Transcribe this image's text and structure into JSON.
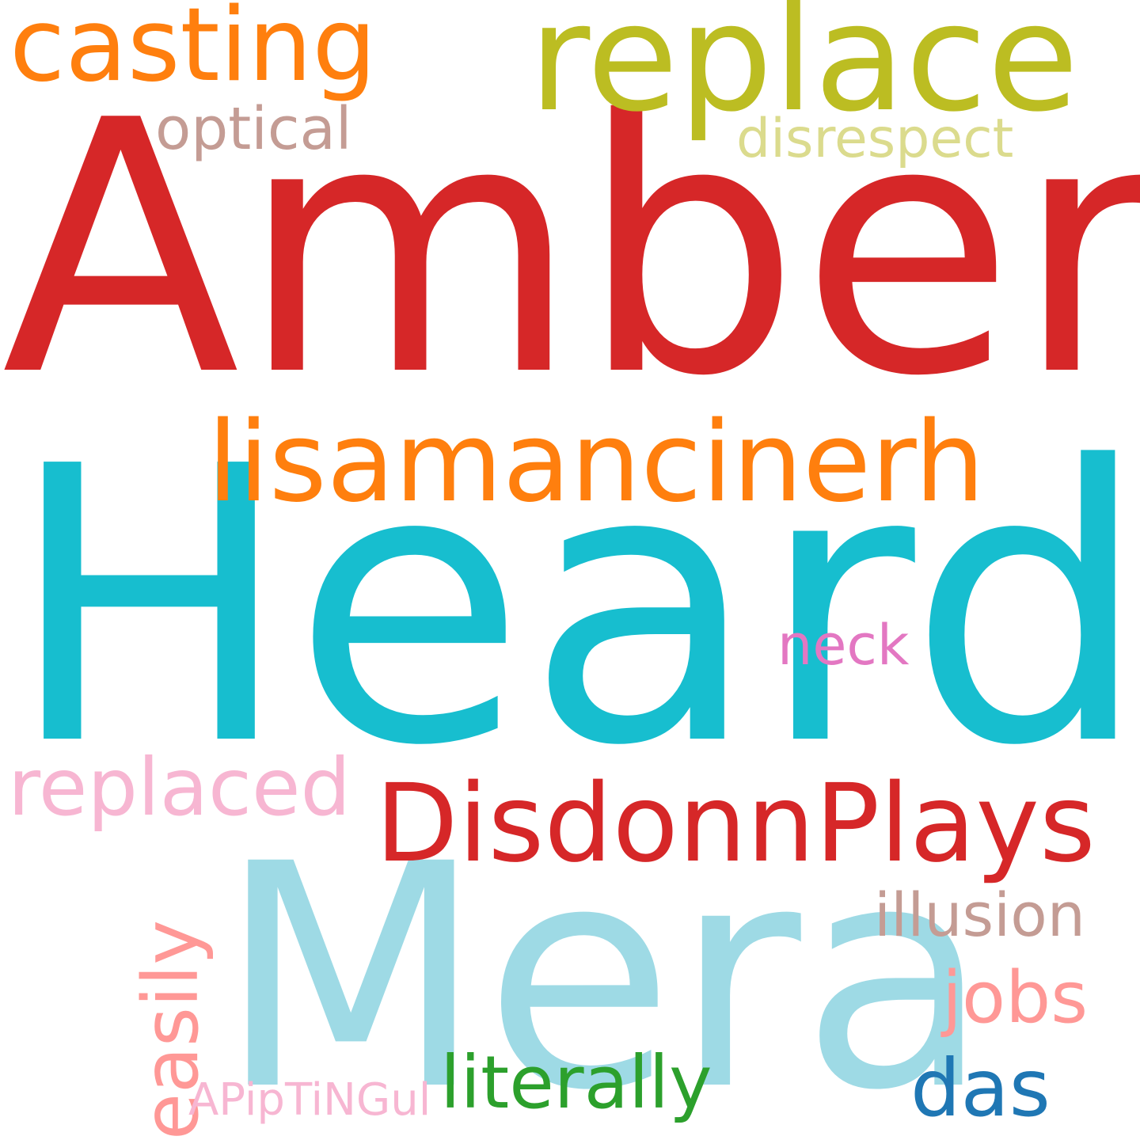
{
  "words": [
    {
      "text": "Amber",
      "color": "#d62728"
    },
    {
      "text": "Heard",
      "color": "#17becf"
    },
    {
      "text": "Mera",
      "color": "#9edae5"
    },
    {
      "text": "replace",
      "color": "#bcbd22"
    },
    {
      "text": "casting",
      "color": "#ff7f0e"
    },
    {
      "text": "lisamancinerh",
      "color": "#ff7f0e"
    },
    {
      "text": "DisdonnPlays",
      "color": "#d62728"
    },
    {
      "text": "optical",
      "color": "#c49c94"
    },
    {
      "text": "disrespect",
      "color": "#dbdb8d"
    },
    {
      "text": "neck",
      "color": "#e377c2"
    },
    {
      "text": "replaced",
      "color": "#f7b6d2"
    },
    {
      "text": "easily",
      "color": "#ff9896"
    },
    {
      "text": "illusion",
      "color": "#c49c94"
    },
    {
      "text": "jobs",
      "color": "#ff9896"
    },
    {
      "text": "literally",
      "color": "#2ca02c"
    },
    {
      "text": "das",
      "color": "#1f77b4"
    },
    {
      "text": "APipTiNGul",
      "color": "#f7b6d2"
    }
  ]
}
